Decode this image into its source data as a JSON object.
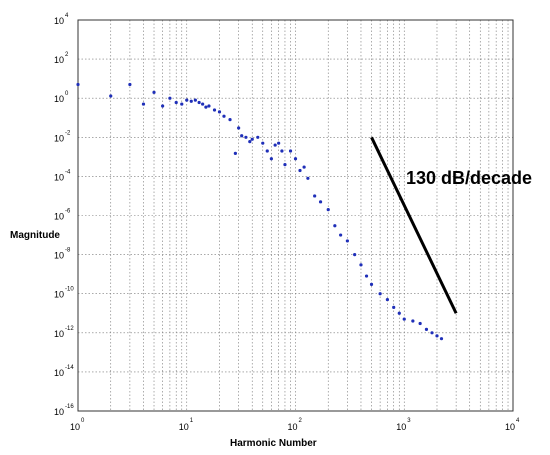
{
  "chart_data": {
    "type": "scatter",
    "title": "",
    "xlabel": "Harmonic Number",
    "ylabel": "Magnitude",
    "xscale": "log",
    "yscale": "log",
    "xlim": [
      1,
      10000
    ],
    "ylim": [
      1e-16,
      10000
    ],
    "x_ticks": [
      {
        "base": "10",
        "exp": "0",
        "value": 1
      },
      {
        "base": "10",
        "exp": "1",
        "value": 10
      },
      {
        "base": "10",
        "exp": "2",
        "value": 100
      },
      {
        "base": "10",
        "exp": "3",
        "value": 1000
      },
      {
        "base": "10",
        "exp": "4",
        "value": 10000
      }
    ],
    "y_ticks": [
      {
        "base": "10",
        "exp": "4",
        "value": 10000
      },
      {
        "base": "10",
        "exp": "2",
        "value": 100
      },
      {
        "base": "10",
        "exp": "0",
        "value": 1
      },
      {
        "base": "10",
        "exp": "-2",
        "value": 0.01
      },
      {
        "base": "10",
        "exp": "-4",
        "value": 0.0001
      },
      {
        "base": "10",
        "exp": "-6",
        "value": 1e-06
      },
      {
        "base": "10",
        "exp": "-8",
        "value": 1e-08
      },
      {
        "base": "10",
        "exp": "-10",
        "value": 1e-10
      },
      {
        "base": "10",
        "exp": "-12",
        "value": 1e-12
      },
      {
        "base": "10",
        "exp": "-14",
        "value": 1e-14
      },
      {
        "base": "10",
        "exp": "-16",
        "value": 1e-16
      }
    ],
    "grid": true,
    "marker_color": "#1f2fb8",
    "series": [
      {
        "x": [
          1,
          2,
          3,
          4,
          5,
          6,
          7,
          8,
          9,
          10,
          11,
          12,
          13,
          14,
          15,
          16,
          18,
          20,
          22,
          25,
          28,
          30,
          32,
          35,
          38,
          40,
          45,
          50,
          55,
          60,
          65,
          70,
          75,
          80,
          90,
          100,
          110,
          120,
          130,
          150,
          170,
          200,
          230,
          260,
          300,
          350,
          400,
          450,
          500,
          600,
          700,
          800,
          900,
          1000,
          1200,
          1400,
          1600,
          1800,
          2000,
          2200
        ],
        "y": [
          5,
          1.3,
          5,
          0.5,
          2,
          0.4,
          1,
          0.6,
          0.5,
          0.8,
          0.7,
          0.8,
          0.6,
          0.5,
          0.35,
          0.4,
          0.25,
          0.2,
          0.12,
          0.08,
          0.0015,
          0.03,
          0.012,
          0.01,
          0.006,
          0.008,
          0.01,
          0.005,
          0.002,
          0.0008,
          0.004,
          0.005,
          0.002,
          0.0004,
          0.002,
          0.0008,
          0.0002,
          0.0003,
          8e-05,
          1e-05,
          5e-06,
          2e-06,
          3e-07,
          1e-07,
          5e-08,
          1e-08,
          3e-09,
          8e-10,
          3e-10,
          1e-10,
          5e-11,
          2e-11,
          1e-11,
          5e-12,
          4e-12,
          3e-12,
          1.5e-12,
          1e-12,
          7e-13,
          5e-13
        ]
      }
    ],
    "annotation": {
      "text": "130 dB/decade",
      "line": {
        "x": [
          500,
          3000
        ],
        "y": [
          0.01,
          1e-11
        ]
      }
    }
  }
}
